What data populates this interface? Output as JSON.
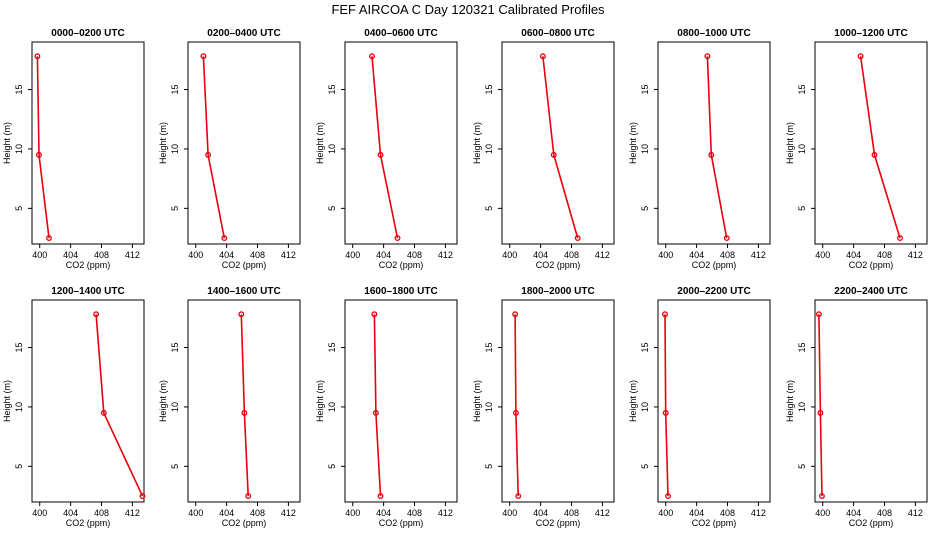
{
  "figure_title": "FEF AIRCOA C  Day 120321  Calibrated Profiles",
  "colors": {
    "series": "#e8000b",
    "axis": "#000000",
    "background": "#ffffff"
  },
  "chart_data": [
    {
      "type": "line",
      "title": "0000–0200 UTC",
      "xlabel": "CO2 (ppm)",
      "ylabel": "Height (m)",
      "xlim": [
        399,
        413.5
      ],
      "ylim": [
        2,
        19
      ],
      "xticks": [
        400,
        404,
        408,
        412
      ],
      "yticks": [
        5,
        10,
        15
      ],
      "x": [
        399.7,
        399.9,
        401.2
      ],
      "y": [
        17.8,
        9.5,
        2.5
      ]
    },
    {
      "type": "line",
      "title": "0200–0400 UTC",
      "xlabel": "CO2 (ppm)",
      "ylabel": "Height (m)",
      "xlim": [
        399,
        413.5
      ],
      "ylim": [
        2,
        19
      ],
      "xticks": [
        400,
        404,
        408,
        412
      ],
      "yticks": [
        5,
        10,
        15
      ],
      "x": [
        401.0,
        401.6,
        403.7
      ],
      "y": [
        17.8,
        9.5,
        2.5
      ]
    },
    {
      "type": "line",
      "title": "0400–0600 UTC",
      "xlabel": "CO2 (ppm)",
      "ylabel": "Height (m)",
      "xlim": [
        399,
        413.5
      ],
      "ylim": [
        2,
        19
      ],
      "xticks": [
        400,
        404,
        408,
        412
      ],
      "yticks": [
        5,
        10,
        15
      ],
      "x": [
        402.5,
        403.6,
        405.8
      ],
      "y": [
        17.8,
        9.5,
        2.5
      ]
    },
    {
      "type": "line",
      "title": "0600–0800 UTC",
      "xlabel": "CO2 (ppm)",
      "ylabel": "Height (m)",
      "xlim": [
        399,
        413.5
      ],
      "ylim": [
        2,
        19
      ],
      "xticks": [
        400,
        404,
        408,
        412
      ],
      "yticks": [
        5,
        10,
        15
      ],
      "x": [
        404.3,
        405.7,
        408.8
      ],
      "y": [
        17.8,
        9.5,
        2.5
      ]
    },
    {
      "type": "line",
      "title": "0800–1000 UTC",
      "xlabel": "CO2 (ppm)",
      "ylabel": "Height (m)",
      "xlim": [
        399,
        413.5
      ],
      "ylim": [
        2,
        19
      ],
      "xticks": [
        400,
        404,
        408,
        412
      ],
      "yticks": [
        5,
        10,
        15
      ],
      "x": [
        405.4,
        405.9,
        407.9
      ],
      "y": [
        17.8,
        9.5,
        2.5
      ]
    },
    {
      "type": "line",
      "title": "1000–1200 UTC",
      "xlabel": "CO2 (ppm)",
      "ylabel": "Height (m)",
      "xlim": [
        399,
        413.5
      ],
      "ylim": [
        2,
        19
      ],
      "xticks": [
        400,
        404,
        408,
        412
      ],
      "yticks": [
        5,
        10,
        15
      ],
      "x": [
        404.9,
        406.7,
        410.0
      ],
      "y": [
        17.8,
        9.5,
        2.5
      ]
    },
    {
      "type": "line",
      "title": "1200–1400 UTC",
      "xlabel": "CO2 (ppm)",
      "ylabel": "Height (m)",
      "xlim": [
        399,
        413.5
      ],
      "ylim": [
        2,
        19
      ],
      "xticks": [
        400,
        404,
        408,
        412
      ],
      "yticks": [
        5,
        10,
        15
      ],
      "x": [
        407.3,
        408.3,
        413.3
      ],
      "y": [
        17.8,
        9.5,
        2.5
      ]
    },
    {
      "type": "line",
      "title": "1400–1600 UTC",
      "xlabel": "CO2 (ppm)",
      "ylabel": "Height (m)",
      "xlim": [
        399,
        413.5
      ],
      "ylim": [
        2,
        19
      ],
      "xticks": [
        400,
        404,
        408,
        412
      ],
      "yticks": [
        5,
        10,
        15
      ],
      "x": [
        405.9,
        406.3,
        406.8
      ],
      "y": [
        17.8,
        9.5,
        2.5
      ]
    },
    {
      "type": "line",
      "title": "1600–1800 UTC",
      "xlabel": "CO2 (ppm)",
      "ylabel": "Height (m)",
      "xlim": [
        399,
        413.5
      ],
      "ylim": [
        2,
        19
      ],
      "xticks": [
        400,
        404,
        408,
        412
      ],
      "yticks": [
        5,
        10,
        15
      ],
      "x": [
        402.8,
        403.0,
        403.6
      ],
      "y": [
        17.8,
        9.5,
        2.5
      ]
    },
    {
      "type": "line",
      "title": "1800–2000 UTC",
      "xlabel": "CO2 (ppm)",
      "ylabel": "Height (m)",
      "xlim": [
        399,
        413.5
      ],
      "ylim": [
        2,
        19
      ],
      "xticks": [
        400,
        404,
        408,
        412
      ],
      "yticks": [
        5,
        10,
        15
      ],
      "x": [
        400.7,
        400.8,
        401.1
      ],
      "y": [
        17.8,
        9.5,
        2.5
      ]
    },
    {
      "type": "line",
      "title": "2000–2200 UTC",
      "xlabel": "CO2 (ppm)",
      "ylabel": "Height (m)",
      "xlim": [
        399,
        413.5
      ],
      "ylim": [
        2,
        19
      ],
      "xticks": [
        400,
        404,
        408,
        412
      ],
      "yticks": [
        5,
        10,
        15
      ],
      "x": [
        399.9,
        400.0,
        400.3
      ],
      "y": [
        17.8,
        9.5,
        2.5
      ]
    },
    {
      "type": "line",
      "title": "2200–2400 UTC",
      "xlabel": "CO2 (ppm)",
      "ylabel": "Height (m)",
      "xlim": [
        399,
        413.5
      ],
      "ylim": [
        2,
        19
      ],
      "xticks": [
        400,
        404,
        408,
        412
      ],
      "yticks": [
        5,
        10,
        15
      ],
      "x": [
        399.5,
        399.7,
        399.9
      ],
      "y": [
        17.8,
        9.5,
        2.5
      ]
    }
  ]
}
